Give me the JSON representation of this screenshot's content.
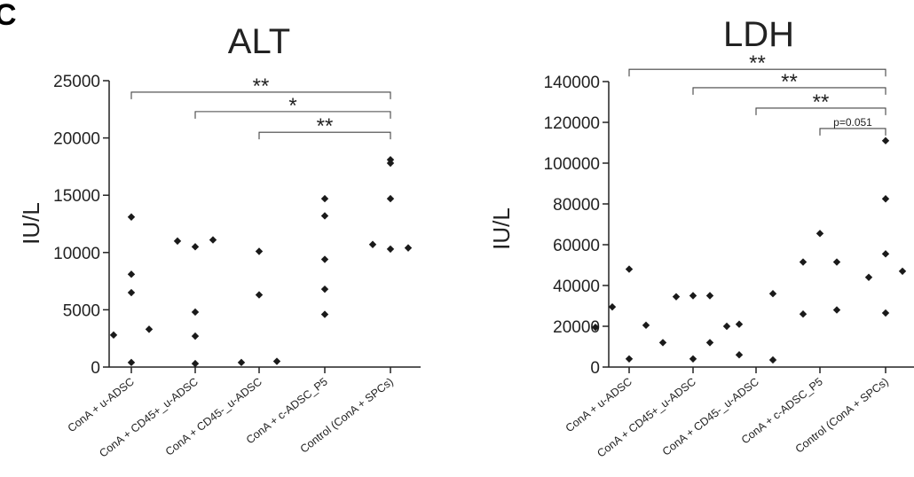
{
  "panel_label": "C",
  "chart_data": [
    {
      "type": "scatter",
      "title": "ALT",
      "xlabel": "",
      "ylabel": "IU/L",
      "ylim": [
        0,
        25000
      ],
      "yticks": [
        0,
        5000,
        10000,
        15000,
        20000,
        25000
      ],
      "ytick_labels": [
        "0",
        "5000",
        "10000",
        "15000",
        "20000",
        "25000"
      ],
      "categories": [
        "ConA + u-ADSC",
        "ConA + CD45+_u-ADSC",
        "ConA + CD45-_u-ADSC",
        "ConA + c-ADSC_P5",
        "Control (ConA + SPCs)"
      ],
      "groups": [
        {
          "category": "ConA + u-ADSC",
          "points": [
            {
              "offset": -1,
              "y": 2800
            },
            {
              "offset": 0,
              "y": 13100
            },
            {
              "offset": 0,
              "y": 8100
            },
            {
              "offset": 0,
              "y": 6500
            },
            {
              "offset": 0,
              "y": 400
            },
            {
              "offset": 1,
              "y": 3300
            }
          ]
        },
        {
          "category": "ConA + CD45+_u-ADSC",
          "points": [
            {
              "offset": -1,
              "y": 11000
            },
            {
              "offset": 0,
              "y": 10500
            },
            {
              "offset": 0,
              "y": 4800
            },
            {
              "offset": 0,
              "y": 2700
            },
            {
              "offset": 0,
              "y": 300
            },
            {
              "offset": 1,
              "y": 11100
            }
          ]
        },
        {
          "category": "ConA + CD45-_u-ADSC",
          "points": [
            {
              "offset": -1,
              "y": 400
            },
            {
              "offset": 0,
              "y": 10100
            },
            {
              "offset": 0,
              "y": 6300
            },
            {
              "offset": 1,
              "y": 500
            }
          ]
        },
        {
          "category": "ConA + c-ADSC_P5",
          "points": [
            {
              "offset": 0,
              "y": 14700
            },
            {
              "offset": 0,
              "y": 13200
            },
            {
              "offset": 0,
              "y": 9400
            },
            {
              "offset": 0,
              "y": 6800
            },
            {
              "offset": 0,
              "y": 4600
            }
          ]
        },
        {
          "category": "Control (ConA + SPCs)",
          "points": [
            {
              "offset": -1,
              "y": 10700
            },
            {
              "offset": 0,
              "y": 18100
            },
            {
              "offset": 0,
              "y": 17800
            },
            {
              "offset": 0,
              "y": 14700
            },
            {
              "offset": 0,
              "y": 10300
            },
            {
              "offset": 1,
              "y": 10400
            }
          ]
        }
      ],
      "significance": [
        {
          "from": 0,
          "to": 4,
          "y": 24000,
          "label": "**"
        },
        {
          "from": 1,
          "to": 4,
          "y": 22300,
          "label": "*"
        },
        {
          "from": 2,
          "to": 4,
          "y": 20500,
          "label": "**"
        }
      ],
      "grid": false,
      "legend": "none"
    },
    {
      "type": "scatter",
      "title": "LDH",
      "xlabel": "",
      "ylabel": "IU/L",
      "ylim": [
        0,
        140000
      ],
      "yticks": [
        0,
        20000,
        40000,
        60000,
        80000,
        100000,
        120000,
        140000
      ],
      "ytick_labels": [
        "0",
        "20000",
        "40000",
        "60000",
        "80000",
        "100000",
        "120000",
        "140000"
      ],
      "categories": [
        "ConA + u-ADSC",
        "ConA + CD45+_u-ADSC",
        "ConA + CD45-_u-ADSC",
        "ConA + c-ADSC_P5",
        "Control (ConA + SPCs)"
      ],
      "groups": [
        {
          "category": "ConA + u-ADSC",
          "points": [
            {
              "offset": -2,
              "y": 19500
            },
            {
              "offset": -1,
              "y": 29500
            },
            {
              "offset": 0,
              "y": 48000
            },
            {
              "offset": 0,
              "y": 4000
            },
            {
              "offset": 1,
              "y": 20500
            },
            {
              "offset": 2,
              "y": 12000
            }
          ]
        },
        {
          "category": "ConA + CD45+_u-ADSC",
          "points": [
            {
              "offset": -1,
              "y": 34500
            },
            {
              "offset": 0,
              "y": 35000
            },
            {
              "offset": 0,
              "y": 4000
            },
            {
              "offset": 1,
              "y": 35000
            },
            {
              "offset": 1,
              "y": 12000
            },
            {
              "offset": 2,
              "y": 20000
            }
          ]
        },
        {
          "category": "ConA + CD45-_u-ADSC",
          "points": [
            {
              "offset": -1,
              "y": 21000
            },
            {
              "offset": -1,
              "y": 6000
            },
            {
              "offset": 1,
              "y": 36000
            },
            {
              "offset": 1,
              "y": 3500
            }
          ]
        },
        {
          "category": "ConA + c-ADSC_P5",
          "points": [
            {
              "offset": -1,
              "y": 51500
            },
            {
              "offset": -1,
              "y": 26000
            },
            {
              "offset": 0,
              "y": 65500
            },
            {
              "offset": 1,
              "y": 51500
            },
            {
              "offset": 1,
              "y": 28000
            }
          ]
        },
        {
          "category": "Control (ConA + SPCs)",
          "points": [
            {
              "offset": -1,
              "y": 44000
            },
            {
              "offset": 0,
              "y": 111000
            },
            {
              "offset": 0,
              "y": 82500
            },
            {
              "offset": 0,
              "y": 55500
            },
            {
              "offset": 0,
              "y": 26500
            },
            {
              "offset": 1,
              "y": 47000
            }
          ]
        }
      ],
      "significance": [
        {
          "from": 0,
          "to": 4,
          "y": 146000,
          "label": "**"
        },
        {
          "from": 1,
          "to": 4,
          "y": 137000,
          "label": "**"
        },
        {
          "from": 2,
          "to": 4,
          "y": 127000,
          "label": "**"
        },
        {
          "from": 3,
          "to": 4,
          "y": 117000,
          "label": "p=0.051"
        }
      ],
      "grid": false,
      "legend": "none"
    }
  ]
}
